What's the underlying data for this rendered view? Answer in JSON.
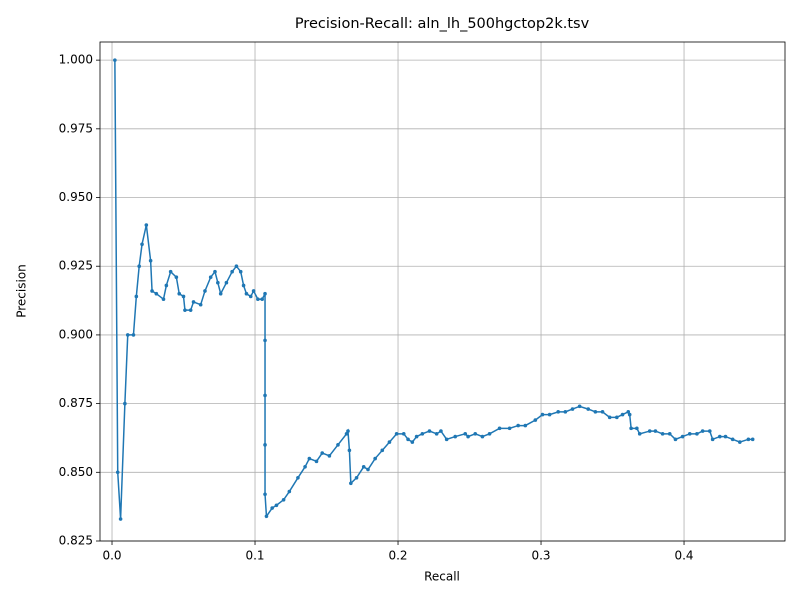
{
  "chart_data": {
    "type": "line",
    "title": "Precision-Recall: aln_lh_500hgctop2k.tsv",
    "x_label": "Recall",
    "y_label": "Precision",
    "color": "#1f77b4",
    "grid": true,
    "marker": true,
    "xlim": [
      -0.0084,
      0.4706
    ],
    "ylim": [
      0.825,
      1.0066
    ],
    "xticks": [
      {
        "value": 0,
        "label": "0.0"
      },
      0.1,
      0.2,
      0.3,
      0.4
    ],
    "yticks": [
      0.825,
      {
        "value": 0.85,
        "label": "0.850"
      },
      0.875,
      {
        "value": 0.9,
        "label": "0.900"
      },
      0.925,
      {
        "value": 0.95,
        "label": "0.950"
      },
      0.975,
      {
        "value": 1,
        "label": "1.000"
      }
    ],
    "x": [
      0.002,
      0.004,
      0.006,
      0.009,
      0.011,
      0.015,
      0.017,
      0.019,
      0.021,
      0.024,
      0.027,
      0.028,
      0.031,
      0.036,
      0.038,
      0.041,
      0.045,
      0.047,
      0.05,
      0.051,
      0.055,
      0.057,
      0.062,
      0.065,
      0.069,
      0.072,
      0.074,
      0.076,
      0.08,
      0.084,
      0.087,
      0.09,
      0.092,
      0.094,
      0.097,
      0.099,
      0.102,
      0.105,
      0.107,
      0.107,
      0.107,
      0.107,
      0.107,
      0.108,
      0.112,
      0.115,
      0.12,
      0.124,
      0.13,
      0.135,
      0.138,
      0.143,
      0.147,
      0.152,
      0.158,
      0.164,
      0.165,
      0.166,
      0.167,
      0.171,
      0.176,
      0.179,
      0.184,
      0.189,
      0.194,
      0.199,
      0.204,
      0.207,
      0.21,
      0.213,
      0.217,
      0.222,
      0.227,
      0.23,
      0.234,
      0.24,
      0.247,
      0.249,
      0.254,
      0.259,
      0.264,
      0.271,
      0.278,
      0.284,
      0.289,
      0.296,
      0.301,
      0.306,
      0.312,
      0.317,
      0.322,
      0.327,
      0.333,
      0.338,
      0.343,
      0.348,
      0.353,
      0.357,
      0.361,
      0.362,
      0.363,
      0.367,
      0.369,
      0.376,
      0.38,
      0.385,
      0.39,
      0.394,
      0.399,
      0.404,
      0.409,
      0.413,
      0.418,
      0.42,
      0.425,
      0.429,
      0.434,
      0.439,
      0.445,
      0.448
    ],
    "values": [
      1.0,
      0.85,
      0.833,
      0.875,
      0.9,
      0.9,
      0.914,
      0.925,
      0.933,
      0.94,
      0.927,
      0.916,
      0.915,
      0.913,
      0.918,
      0.923,
      0.921,
      0.915,
      0.914,
      0.909,
      0.909,
      0.912,
      0.911,
      0.916,
      0.921,
      0.923,
      0.919,
      0.915,
      0.919,
      0.923,
      0.925,
      0.923,
      0.918,
      0.915,
      0.914,
      0.916,
      0.913,
      0.913,
      0.915,
      0.898,
      0.878,
      0.86,
      0.842,
      0.834,
      0.837,
      0.838,
      0.84,
      0.843,
      0.848,
      0.852,
      0.855,
      0.854,
      0.857,
      0.856,
      0.86,
      0.864,
      0.865,
      0.858,
      0.846,
      0.848,
      0.852,
      0.851,
      0.855,
      0.858,
      0.861,
      0.864,
      0.864,
      0.862,
      0.861,
      0.863,
      0.864,
      0.865,
      0.864,
      0.865,
      0.862,
      0.863,
      0.864,
      0.863,
      0.864,
      0.863,
      0.864,
      0.866,
      0.866,
      0.867,
      0.867,
      0.869,
      0.871,
      0.871,
      0.872,
      0.872,
      0.873,
      0.874,
      0.873,
      0.872,
      0.872,
      0.87,
      0.87,
      0.871,
      0.872,
      0.871,
      0.866,
      0.866,
      0.864,
      0.865,
      0.865,
      0.864,
      0.864,
      0.862,
      0.863,
      0.864,
      0.864,
      0.865,
      0.865,
      0.862,
      0.863,
      0.863,
      0.862,
      0.861,
      0.862,
      0.862
    ]
  }
}
